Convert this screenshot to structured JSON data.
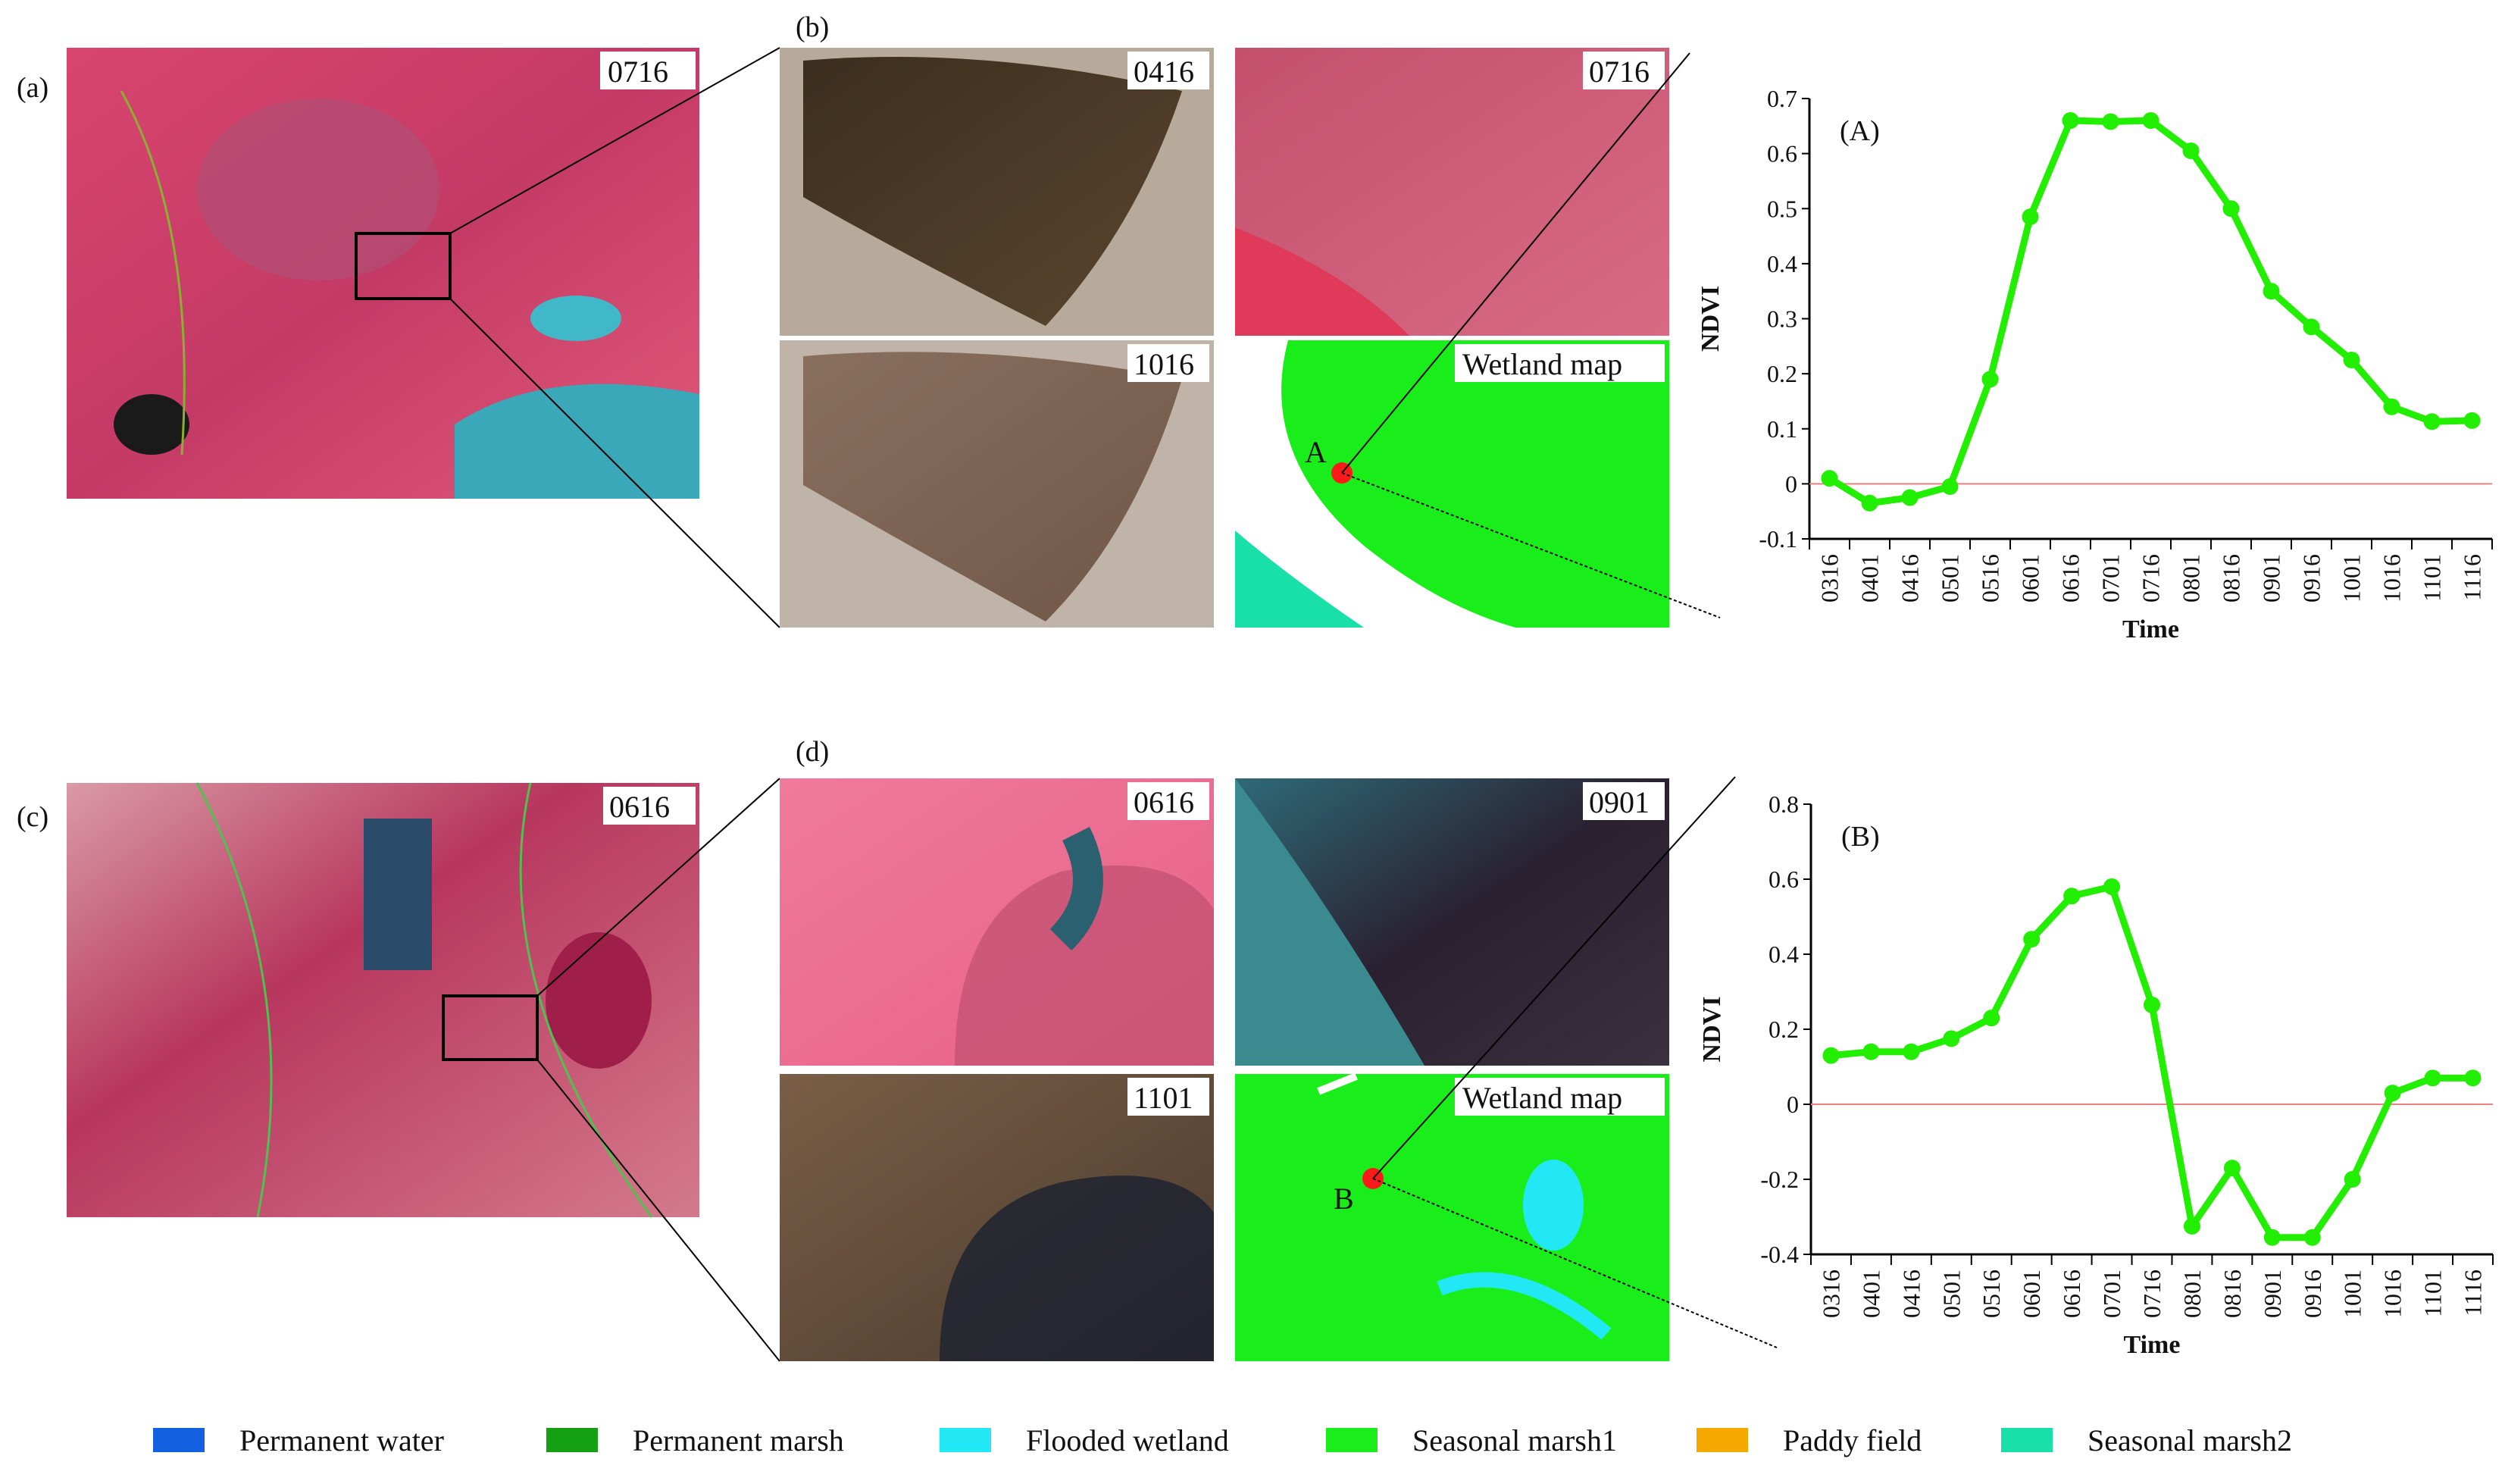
{
  "panels": {
    "a": {
      "label": "(a)",
      "tag": "0716"
    },
    "b": {
      "label": "(b)",
      "tags": [
        "0416",
        "0716",
        "1016",
        "Wetland map"
      ],
      "point": "A"
    },
    "c": {
      "label": "(c)",
      "tag": "0616"
    },
    "d": {
      "label": "(d)",
      "tags": [
        "0616",
        "0901",
        "1101",
        "Wetland map"
      ],
      "point": "B"
    }
  },
  "legend": [
    {
      "label": "Permanent water",
      "color": "#1560e0"
    },
    {
      "label": "Permanent marsh",
      "color": "#13a013"
    },
    {
      "label": "Flooded wetland",
      "color": "#22e8f5"
    },
    {
      "label": "Seasonal marsh1",
      "color": "#1aee1a"
    },
    {
      "label": "Paddy field",
      "color": "#f5a800"
    },
    {
      "label": "Seasonal marsh2",
      "color": "#18e0a8"
    }
  ],
  "chart_data": [
    {
      "type": "line",
      "title": "(A)",
      "xlabel": "Time",
      "ylabel": "NDVI",
      "categories": [
        "0316",
        "0401",
        "0416",
        "0501",
        "0516",
        "0601",
        "0616",
        "0701",
        "0716",
        "0801",
        "0816",
        "0901",
        "0916",
        "1001",
        "1016",
        "1101",
        "1116"
      ],
      "values": [
        0.01,
        -0.035,
        -0.025,
        -0.005,
        0.19,
        0.485,
        0.66,
        0.658,
        0.66,
        0.605,
        0.5,
        0.35,
        0.285,
        0.225,
        0.14,
        0.113,
        0.115
      ],
      "ylim": [
        -0.1,
        0.7
      ],
      "yticks": [
        "-0.1",
        "0",
        "0.1",
        "0.2",
        "0.3",
        "0.4",
        "0.5",
        "0.6",
        "0.7"
      ],
      "reference_line": 0,
      "line_color": "#22ee00",
      "reference_color": "#f08080"
    },
    {
      "type": "line",
      "title": "(B)",
      "xlabel": "Time",
      "ylabel": "NDVI",
      "categories": [
        "0316",
        "0401",
        "0416",
        "0501",
        "0516",
        "0601",
        "0616",
        "0701",
        "0716",
        "0801",
        "0816",
        "0901",
        "0916",
        "1001",
        "1016",
        "1101",
        "1116"
      ],
      "values": [
        0.13,
        0.14,
        0.14,
        0.175,
        0.23,
        0.44,
        0.555,
        0.58,
        0.265,
        -0.325,
        -0.17,
        -0.355,
        -0.355,
        -0.2,
        0.03,
        0.07,
        0.07
      ],
      "ylim": [
        -0.4,
        0.8
      ],
      "yticks": [
        "-0.4",
        "-0.2",
        "0",
        "0.2",
        "0.4",
        "0.6",
        "0.8"
      ],
      "reference_line": 0,
      "line_color": "#22ee00",
      "reference_color": "#f08080"
    }
  ]
}
